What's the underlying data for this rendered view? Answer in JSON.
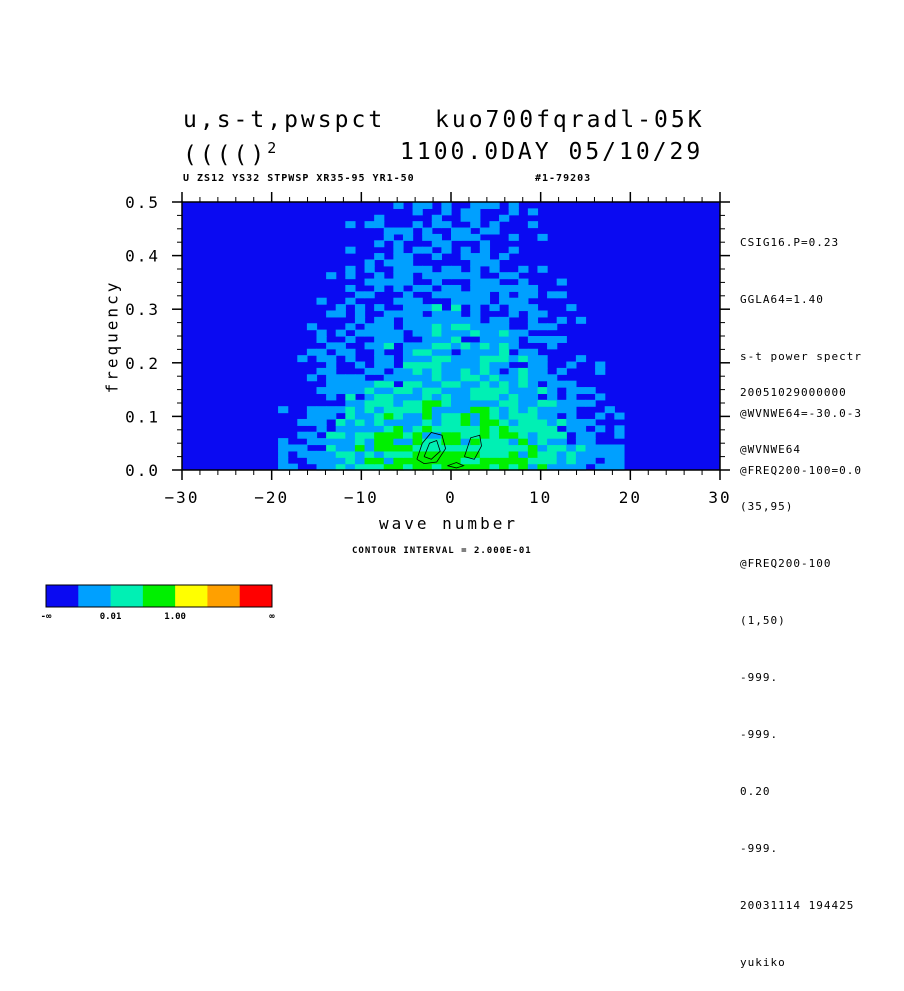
{
  "title": {
    "line1_left": "u,s-t,pwspct",
    "line1_right": "kuo700fqradl-05K",
    "line2_left": "(((()",
    "line2_sup": "2",
    "line2_right": "1100.0DAY 05/10/29"
  },
  "subtitle_left": "U ZS12 YS32 STPWSP XR35-95 YR1-50",
  "subtitle_right": "#1-79203",
  "side_info_top": [
    "CSIG16.P=0.23",
    "GGLA64=1.40",
    "s-t power spectr",
    "@WVNWE64=-30.0-3",
    "@FREQ200-100=0.0"
  ],
  "side_info_bottom": [
    "20051029000000",
    "@WVNWE64",
    "(35,95)",
    "@FREQ200-100",
    "(1,50)",
    "-999.",
    "-999.",
    "0.20",
    "-999.",
    "20031114 194425",
    "yukiko"
  ],
  "contour_interval": "CONTOUR INTERVAL = 2.000E-01",
  "colors": {
    "level0": "#0a0af2",
    "level1": "#00a0ff",
    "level2": "#00f0b4",
    "level3": "#00f000",
    "level4": "#ffff00",
    "level5": "#ffa000",
    "level6": "#ff0000"
  },
  "colorbar": {
    "colors": [
      "#0a0af2",
      "#00a0ff",
      "#00f0b4",
      "#00f000",
      "#ffff00",
      "#ffa000",
      "#ff0000"
    ],
    "labels": [
      "-∞",
      "0.01",
      "1.00",
      "∞"
    ]
  },
  "chart_data": {
    "type": "heatmap",
    "xlabel": "wave number",
    "ylabel": "frequency",
    "xlim": [
      -30,
      30
    ],
    "ylim": [
      0,
      0.5
    ],
    "xticks": [
      -30,
      -20,
      -10,
      0,
      10,
      20,
      30
    ],
    "xtick_labels": [
      "−30",
      "−20",
      "−10",
      "0",
      "10",
      "20",
      "30"
    ],
    "yticks": [
      0,
      0.1,
      0.2,
      0.3,
      0.4,
      0.5
    ],
    "ytick_labels": [
      "0.0",
      "0.1",
      "0.2",
      "0.3",
      "0.4",
      "0.5"
    ],
    "levels": [
      "-inf",
      "0.01",
      "1.00",
      "inf"
    ],
    "grid": false
  }
}
